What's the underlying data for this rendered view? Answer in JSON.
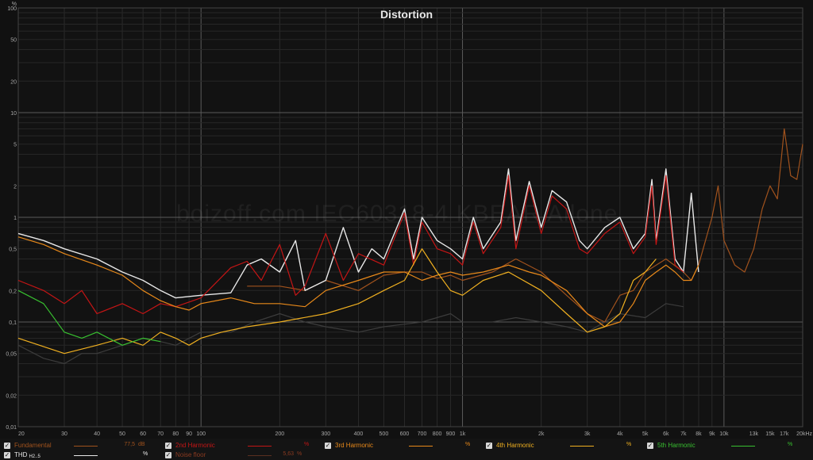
{
  "chart_data": {
    "type": "line",
    "title": "Distortion",
    "watermark": "boizoff.com IEC60318-4 KBEAR Ailone",
    "y_unit": "%",
    "x_scale": "log",
    "y_scale": "log",
    "xlim": [
      20,
      20000
    ],
    "ylim": [
      0.01,
      100
    ],
    "x_ticks": [
      {
        "v": 20,
        "label": "20"
      },
      {
        "v": 30,
        "label": "30"
      },
      {
        "v": 40,
        "label": "40"
      },
      {
        "v": 50,
        "label": "50"
      },
      {
        "v": 60,
        "label": "60"
      },
      {
        "v": 70,
        "label": "70"
      },
      {
        "v": 80,
        "label": "80"
      },
      {
        "v": 90,
        "label": "90"
      },
      {
        "v": 100,
        "label": "100"
      },
      {
        "v": 200,
        "label": "200"
      },
      {
        "v": 300,
        "label": "300"
      },
      {
        "v": 400,
        "label": "400"
      },
      {
        "v": 500,
        "label": "500"
      },
      {
        "v": 600,
        "label": "600"
      },
      {
        "v": 700,
        "label": "700"
      },
      {
        "v": 800,
        "label": "800"
      },
      {
        "v": 900,
        "label": "900"
      },
      {
        "v": 1000,
        "label": "1k"
      },
      {
        "v": 2000,
        "label": "2k"
      },
      {
        "v": 3000,
        "label": "3k"
      },
      {
        "v": 4000,
        "label": "4k"
      },
      {
        "v": 5000,
        "label": "5k"
      },
      {
        "v": 6000,
        "label": "6k"
      },
      {
        "v": 7000,
        "label": "7k"
      },
      {
        "v": 8000,
        "label": "8k"
      },
      {
        "v": 9000,
        "label": "9k"
      },
      {
        "v": 10000,
        "label": "10k"
      },
      {
        "v": 13000,
        "label": "13k"
      },
      {
        "v": 15000,
        "label": "15k"
      },
      {
        "v": 17000,
        "label": "17k"
      },
      {
        "v": 20000,
        "label": "20kHz"
      }
    ],
    "y_ticks": [
      {
        "v": 100,
        "label": "100"
      },
      {
        "v": 50,
        "label": "50"
      },
      {
        "v": 20,
        "label": "20"
      },
      {
        "v": 10,
        "label": "10"
      },
      {
        "v": 5,
        "label": "5"
      },
      {
        "v": 2,
        "label": "2"
      },
      {
        "v": 1,
        "label": "1"
      },
      {
        "v": 0.5,
        "label": "0,5"
      },
      {
        "v": 0.2,
        "label": "0,2"
      },
      {
        "v": 0.1,
        "label": "0,1"
      },
      {
        "v": 0.05,
        "label": "0,05"
      },
      {
        "v": 0.02,
        "label": "0,02"
      },
      {
        "v": 0.01,
        "label": "0,01"
      }
    ],
    "series": [
      {
        "name": "Noise floor",
        "color": "#3c3c3c",
        "x": [
          20,
          25,
          30,
          35,
          40,
          50,
          60,
          70,
          80,
          100,
          130,
          160,
          200,
          250,
          300,
          400,
          500,
          700,
          900,
          1000,
          1300,
          1600,
          2000,
          2500,
          3000,
          3500,
          4000,
          5000,
          6000,
          7000
        ],
        "y": [
          0.06,
          0.045,
          0.04,
          0.05,
          0.05,
          0.06,
          0.07,
          0.065,
          0.06,
          0.08,
          0.08,
          0.1,
          0.12,
          0.1,
          0.09,
          0.08,
          0.09,
          0.1,
          0.12,
          0.1,
          0.1,
          0.11,
          0.1,
          0.09,
          0.08,
          0.1,
          0.12,
          0.11,
          0.15,
          0.14
        ]
      },
      {
        "name": "Fundamental",
        "color": "#a0521d",
        "x": [
          150,
          200,
          250,
          300,
          400,
          500,
          600,
          700,
          800,
          900,
          1000,
          1300,
          1600,
          2000,
          2500,
          3000,
          3500,
          4000,
          4500,
          5000,
          6000,
          7000,
          7500,
          8000,
          9000,
          9500,
          10000,
          11000,
          12000,
          13000,
          14000,
          15000,
          16000,
          17000,
          18000,
          19000,
          20000
        ],
        "y": [
          0.22,
          0.22,
          0.2,
          0.25,
          0.2,
          0.28,
          0.3,
          0.3,
          0.26,
          0.28,
          0.25,
          0.3,
          0.4,
          0.3,
          0.18,
          0.12,
          0.1,
          0.18,
          0.2,
          0.3,
          0.4,
          0.3,
          0.25,
          0.35,
          1.0,
          2.0,
          0.6,
          0.35,
          0.3,
          0.5,
          1.2,
          2.0,
          1.5,
          7.0,
          2.5,
          2.3,
          5.0
        ]
      },
      {
        "name": "THD",
        "color": "#e8e8e8",
        "x": [
          20,
          25,
          30,
          40,
          50,
          60,
          70,
          80,
          100,
          130,
          150,
          170,
          200,
          230,
          250,
          300,
          350,
          400,
          450,
          500,
          600,
          650,
          700,
          800,
          900,
          1000,
          1100,
          1200,
          1400,
          1500,
          1600,
          1800,
          2000,
          2200,
          2500,
          2800,
          3000,
          3500,
          4000,
          4500,
          5000,
          5300,
          5500,
          6000,
          6500,
          7000,
          7500,
          8000
        ],
        "y": [
          0.7,
          0.6,
          0.5,
          0.4,
          0.3,
          0.25,
          0.2,
          0.17,
          0.18,
          0.19,
          0.35,
          0.4,
          0.3,
          0.6,
          0.2,
          0.25,
          0.8,
          0.3,
          0.5,
          0.4,
          1.2,
          0.4,
          1.0,
          0.6,
          0.5,
          0.4,
          1.0,
          0.5,
          0.9,
          2.9,
          0.6,
          2.2,
          0.8,
          1.8,
          1.4,
          0.6,
          0.5,
          0.8,
          1.0,
          0.5,
          0.7,
          2.3,
          0.6,
          2.9,
          0.4,
          0.3,
          1.7,
          0.3
        ]
      },
      {
        "name": "2nd Harmonic",
        "color": "#c41515",
        "x": [
          20,
          25,
          30,
          35,
          40,
          50,
          60,
          70,
          80,
          100,
          130,
          150,
          170,
          200,
          230,
          250,
          300,
          350,
          400,
          500,
          600,
          650,
          700,
          800,
          900,
          1000,
          1100,
          1200,
          1400,
          1500,
          1600,
          1800,
          2000,
          2200,
          2500,
          2800,
          3000,
          3500,
          4000,
          4500,
          5000,
          5300,
          5500,
          6000,
          6500,
          7000
        ],
        "y": [
          0.25,
          0.2,
          0.15,
          0.2,
          0.12,
          0.15,
          0.12,
          0.15,
          0.14,
          0.17,
          0.33,
          0.38,
          0.25,
          0.55,
          0.18,
          0.22,
          0.7,
          0.25,
          0.45,
          0.35,
          1.1,
          0.35,
          0.9,
          0.5,
          0.45,
          0.35,
          0.9,
          0.45,
          0.8,
          2.5,
          0.5,
          2.0,
          0.7,
          1.6,
          1.2,
          0.5,
          0.45,
          0.7,
          0.9,
          0.45,
          0.65,
          2.0,
          0.55,
          2.5,
          0.35,
          0.3
        ]
      },
      {
        "name": "3rd Harmonic",
        "color": "#e8891a",
        "x": [
          20,
          25,
          30,
          40,
          50,
          60,
          70,
          80,
          90,
          100,
          130,
          160,
          200,
          250,
          300,
          400,
          500,
          600,
          700,
          800,
          900,
          1000,
          1200,
          1500,
          1800,
          2000,
          2500,
          3000,
          3500,
          4000,
          4500,
          5000,
          5500,
          6000,
          6500,
          7000,
          7500,
          8000
        ],
        "y": [
          0.65,
          0.55,
          0.45,
          0.35,
          0.28,
          0.2,
          0.16,
          0.14,
          0.13,
          0.15,
          0.17,
          0.15,
          0.15,
          0.14,
          0.2,
          0.25,
          0.3,
          0.3,
          0.25,
          0.28,
          0.3,
          0.28,
          0.3,
          0.35,
          0.3,
          0.28,
          0.2,
          0.12,
          0.09,
          0.1,
          0.15,
          0.25,
          0.3,
          0.35,
          0.3,
          0.25,
          0.25,
          0.35
        ]
      },
      {
        "name": "4th Harmonic",
        "color": "#f0b020",
        "x": [
          20,
          30,
          40,
          50,
          60,
          70,
          80,
          90,
          100,
          120,
          150,
          200,
          300,
          400,
          500,
          600,
          700,
          800,
          900,
          1000,
          1200,
          1500,
          2000,
          2500,
          3000,
          3500,
          4000,
          4500,
          5000,
          5500
        ],
        "y": [
          0.07,
          0.05,
          0.06,
          0.07,
          0.06,
          0.08,
          0.07,
          0.06,
          0.07,
          0.08,
          0.09,
          0.1,
          0.12,
          0.15,
          0.2,
          0.25,
          0.5,
          0.3,
          0.2,
          0.18,
          0.25,
          0.3,
          0.2,
          0.12,
          0.08,
          0.09,
          0.12,
          0.25,
          0.3,
          0.4
        ]
      },
      {
        "name": "5th Harmonic",
        "color": "#38c030",
        "x": [
          20,
          25,
          30,
          35,
          40,
          50,
          60,
          70
        ],
        "y": [
          0.2,
          0.15,
          0.08,
          0.07,
          0.08,
          0.06,
          0.07,
          0.065
        ]
      }
    ]
  },
  "legend": {
    "fundamental": {
      "label": "Fundamental",
      "value": "77,5",
      "unit": "dB"
    },
    "second": {
      "label": "2nd Harmonic",
      "unit": "%"
    },
    "third": {
      "label": "3rd Harmonic",
      "unit": "%"
    },
    "fourth": {
      "label": "4th Harmonic",
      "unit": "%"
    },
    "fifth": {
      "label": "5th Harmonic",
      "unit": "%"
    },
    "thd": {
      "label": "THD",
      "sub": "H2..5",
      "unit": "%"
    },
    "noise": {
      "label": "Noise floor",
      "value": "5,63",
      "unit": "%"
    },
    "check": "✓"
  }
}
